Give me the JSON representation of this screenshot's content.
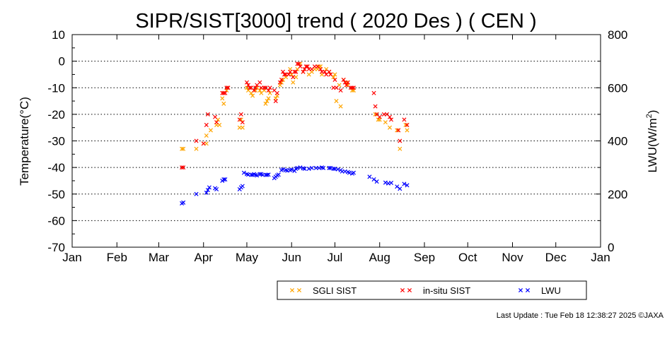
{
  "chart_data": {
    "type": "scatter",
    "title": "SIPR/SIST[3000] trend ( 2020 Des ) ( CEN )",
    "ylabel": "Temperature(°C)",
    "y2label_main": "LWU(W/m",
    "y2label_sup": "2",
    "y2label_end": ")",
    "ylim": [
      -70,
      10
    ],
    "y2lim": [
      0,
      800
    ],
    "yticks": [
      "10",
      "0",
      "-10",
      "-20",
      "-30",
      "-40",
      "-50",
      "-60",
      "-70"
    ],
    "y2ticks": [
      "800",
      "600",
      "400",
      "200",
      "0"
    ],
    "xlim_day": [
      0,
      366
    ],
    "month_labels": [
      "Jan",
      "Feb",
      "Mar",
      "Apr",
      "May",
      "Jun",
      "Jul",
      "Aug",
      "Sep",
      "Oct",
      "Nov",
      "Dec",
      "Jan"
    ],
    "month_starts_day": [
      0,
      31,
      60,
      91,
      121,
      152,
      182,
      213,
      244,
      274,
      305,
      335,
      366
    ],
    "grid": "horizontal dotted",
    "legend_position": "bottom-center",
    "series": [
      {
        "name": "SGLI SIST",
        "color": "#ffa500",
        "axis": "left",
        "points": [
          [
            76,
            -33
          ],
          [
            77,
            -33
          ],
          [
            86,
            -33
          ],
          [
            91,
            -31
          ],
          [
            93,
            -28
          ],
          [
            93,
            -31
          ],
          [
            96,
            -26
          ],
          [
            100,
            -24
          ],
          [
            101,
            -22
          ],
          [
            102,
            -24
          ],
          [
            104,
            -14
          ],
          [
            105,
            -12
          ],
          [
            105,
            -16
          ],
          [
            107,
            -11
          ],
          [
            108,
            -10
          ],
          [
            116,
            -25
          ],
          [
            117,
            -22
          ],
          [
            118,
            -25
          ],
          [
            121,
            -10
          ],
          [
            122,
            -11
          ],
          [
            124,
            -12
          ],
          [
            125,
            -13
          ],
          [
            127,
            -11
          ],
          [
            128,
            -10
          ],
          [
            130,
            -11
          ],
          [
            131,
            -12
          ],
          [
            133,
            -11
          ],
          [
            134,
            -16
          ],
          [
            135,
            -15
          ],
          [
            136,
            -14
          ],
          [
            137,
            -12
          ],
          [
            141,
            -14
          ],
          [
            142,
            -13
          ],
          [
            144,
            -9
          ],
          [
            145,
            -8
          ],
          [
            146,
            -7
          ],
          [
            148,
            -6
          ],
          [
            150,
            -5
          ],
          [
            151,
            -3
          ],
          [
            152,
            -5
          ],
          [
            153,
            -8
          ],
          [
            155,
            -6
          ],
          [
            156,
            -3
          ],
          [
            158,
            -1
          ],
          [
            160,
            -4
          ],
          [
            161,
            -3
          ],
          [
            163,
            -2
          ],
          [
            164,
            -5
          ],
          [
            166,
            -4
          ],
          [
            168,
            -3
          ],
          [
            170,
            -3
          ],
          [
            171,
            -2
          ],
          [
            172,
            -2
          ],
          [
            173,
            -5
          ],
          [
            176,
            -3
          ],
          [
            178,
            -4
          ],
          [
            179,
            -5
          ],
          [
            181,
            -6
          ],
          [
            182,
            -5
          ],
          [
            183,
            -15
          ],
          [
            185,
            -9
          ],
          [
            186,
            -17
          ],
          [
            188,
            -7
          ],
          [
            190,
            -8
          ],
          [
            191,
            -9
          ],
          [
            194,
            -11
          ],
          [
            195,
            -11
          ],
          [
            210,
            -20
          ],
          [
            212,
            -22
          ],
          [
            213,
            -22
          ],
          [
            217,
            -23
          ],
          [
            220,
            -25
          ],
          [
            225,
            -26
          ],
          [
            227,
            -33
          ],
          [
            231,
            -24
          ],
          [
            232,
            -26
          ]
        ]
      },
      {
        "name": "in-situ SIST",
        "color": "#ff0000",
        "axis": "left",
        "points": [
          [
            76,
            -40
          ],
          [
            77,
            -40
          ],
          [
            86,
            -30
          ],
          [
            91,
            -31
          ],
          [
            93,
            -24
          ],
          [
            94,
            -20
          ],
          [
            99,
            -21
          ],
          [
            100,
            -23
          ],
          [
            104,
            -12
          ],
          [
            105,
            -12
          ],
          [
            106,
            -12
          ],
          [
            107,
            -10
          ],
          [
            108,
            -10
          ],
          [
            116,
            -22
          ],
          [
            117,
            -20
          ],
          [
            118,
            -23
          ],
          [
            121,
            -8
          ],
          [
            122,
            -9
          ],
          [
            123,
            -10
          ],
          [
            124,
            -10
          ],
          [
            126,
            -11
          ],
          [
            127,
            -10
          ],
          [
            128,
            -9
          ],
          [
            130,
            -8
          ],
          [
            131,
            -10
          ],
          [
            133,
            -10
          ],
          [
            134,
            -10
          ],
          [
            136,
            -11
          ],
          [
            137,
            -10
          ],
          [
            140,
            -11
          ],
          [
            141,
            -15
          ],
          [
            142,
            -12
          ],
          [
            144,
            -8
          ],
          [
            145,
            -7
          ],
          [
            146,
            -4
          ],
          [
            147,
            -5
          ],
          [
            148,
            -5
          ],
          [
            150,
            -5
          ],
          [
            151,
            -4
          ],
          [
            153,
            -6
          ],
          [
            154,
            -4
          ],
          [
            155,
            -4
          ],
          [
            156,
            -1
          ],
          [
            157,
            -1
          ],
          [
            158,
            -2
          ],
          [
            160,
            -4
          ],
          [
            161,
            -3
          ],
          [
            162,
            -2
          ],
          [
            163,
            -2
          ],
          [
            164,
            -3
          ],
          [
            166,
            -3
          ],
          [
            168,
            -2
          ],
          [
            170,
            -2
          ],
          [
            172,
            -3
          ],
          [
            173,
            -4
          ],
          [
            175,
            -4
          ],
          [
            176,
            -5
          ],
          [
            178,
            -4
          ],
          [
            179,
            -5
          ],
          [
            181,
            -10
          ],
          [
            182,
            -7
          ],
          [
            183,
            -10
          ],
          [
            186,
            -11
          ],
          [
            188,
            -7
          ],
          [
            189,
            -8
          ],
          [
            190,
            -9
          ],
          [
            191,
            -8
          ],
          [
            193,
            -10
          ],
          [
            194,
            -10
          ],
          [
            195,
            -10
          ],
          [
            209,
            -12
          ],
          [
            210,
            -17
          ],
          [
            211,
            -20
          ],
          [
            213,
            -21
          ],
          [
            216,
            -20
          ],
          [
            218,
            -20
          ],
          [
            220,
            -21
          ],
          [
            221,
            -22
          ],
          [
            226,
            -26
          ],
          [
            227,
            -30
          ],
          [
            230,
            -22
          ],
          [
            232,
            -24
          ]
        ]
      },
      {
        "name": "LWU",
        "color": "#0000ff",
        "axis": "right",
        "points": [
          [
            76,
            165
          ],
          [
            77,
            168
          ],
          [
            86,
            200
          ],
          [
            93,
            205
          ],
          [
            94,
            215
          ],
          [
            95,
            225
          ],
          [
            99,
            222
          ],
          [
            100,
            218
          ],
          [
            104,
            250
          ],
          [
            105,
            255
          ],
          [
            106,
            255
          ],
          [
            116,
            218
          ],
          [
            117,
            225
          ],
          [
            118,
            230
          ],
          [
            119,
            280
          ],
          [
            121,
            275
          ],
          [
            122,
            273
          ],
          [
            124,
            272
          ],
          [
            125,
            272
          ],
          [
            126,
            275
          ],
          [
            127,
            272
          ],
          [
            128,
            270
          ],
          [
            130,
            275
          ],
          [
            131,
            275
          ],
          [
            132,
            272
          ],
          [
            134,
            272
          ],
          [
            135,
            272
          ],
          [
            136,
            273
          ],
          [
            140,
            260
          ],
          [
            141,
            265
          ],
          [
            142,
            270
          ],
          [
            143,
            273
          ],
          [
            145,
            290
          ],
          [
            146,
            293
          ],
          [
            148,
            290
          ],
          [
            149,
            288
          ],
          [
            151,
            290
          ],
          [
            152,
            292
          ],
          [
            154,
            287
          ],
          [
            155,
            295
          ],
          [
            156,
            298
          ],
          [
            158,
            300
          ],
          [
            160,
            297
          ],
          [
            161,
            295
          ],
          [
            164,
            295
          ],
          [
            166,
            298
          ],
          [
            169,
            298
          ],
          [
            171,
            298
          ],
          [
            173,
            300
          ],
          [
            174,
            298
          ],
          [
            178,
            298
          ],
          [
            179,
            298
          ],
          [
            181,
            295
          ],
          [
            182,
            295
          ],
          [
            184,
            293
          ],
          [
            186,
            290
          ],
          [
            187,
            285
          ],
          [
            189,
            285
          ],
          [
            191,
            283
          ],
          [
            192,
            280
          ],
          [
            194,
            277
          ],
          [
            195,
            280
          ],
          [
            206,
            265
          ],
          [
            209,
            255
          ],
          [
            211,
            247
          ],
          [
            217,
            243
          ],
          [
            219,
            240
          ],
          [
            221,
            242
          ],
          [
            225,
            228
          ],
          [
            227,
            220
          ],
          [
            230,
            238
          ],
          [
            232,
            233
          ]
        ]
      }
    ]
  },
  "footer": {
    "last_update": "Last Update : Tue Feb 18 12:38:27 2025  ©JAXA"
  }
}
